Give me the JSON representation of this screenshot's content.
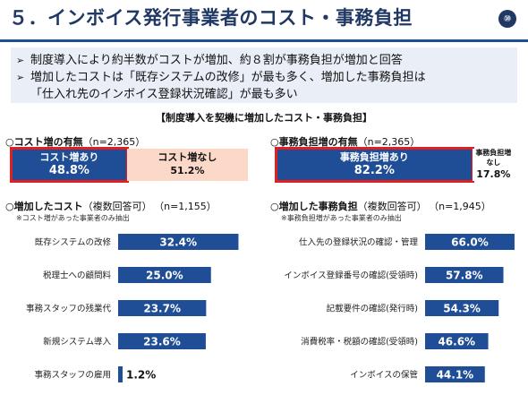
{
  "title": "５．インボイス発行事業者のコスト・事務負担",
  "page_number": "⑩",
  "summary": [
    "制度導入により約半数がコストが増加、約８割が事務負担が増加と回答",
    "増加したコストは「既存システムの改修」が最も多く、増加した事務負担は",
    "「仕入れ先のインボイス登録状況確認」が最も多い"
  ],
  "section_header": "【制度導入を契機に増加したコスト・事務負担】",
  "chart_data": [
    {
      "type": "bar",
      "stacked": true,
      "orientation": "horizontal",
      "title": "○コスト増の有無",
      "n_label": "（n=2,365）",
      "series": [
        {
          "name": "コスト増あり",
          "value": 48.8,
          "label": "48.8%",
          "color": "#1f4e96"
        },
        {
          "name": "コスト増なし",
          "value": 51.2,
          "label": "51.2%",
          "color": "#fbd8c8"
        }
      ],
      "xlim": [
        0,
        100
      ]
    },
    {
      "type": "bar",
      "stacked": true,
      "orientation": "horizontal",
      "title": "○事務負担増の有無",
      "n_label": "（n=2,365）",
      "series": [
        {
          "name": "事務負担増あり",
          "value": 82.2,
          "label": "82.2%",
          "color": "#1f4e96"
        },
        {
          "name": "事務負担増なし",
          "value": 17.8,
          "label": "17.8%",
          "color": "#fbd8c8"
        }
      ],
      "xlim": [
        0,
        100
      ]
    },
    {
      "type": "bar",
      "orientation": "horizontal",
      "title": "○増加したコスト",
      "title_note": "（複数回答可）",
      "n_label": "（n=1,155）",
      "note": "※コスト増があった事業者のみ抽出",
      "categories": [
        "既存システムの改修",
        "税理士への顧問料",
        "事務スタッフの残業代",
        "新規システム導入",
        "事務スタッフの雇用"
      ],
      "values": [
        32.4,
        25.0,
        23.7,
        23.6,
        1.2
      ],
      "value_labels": [
        "32.4%",
        "25.0%",
        "23.7%",
        "23.6%",
        "1.2%"
      ],
      "color": "#1f4e96",
      "xlim": [
        0,
        40
      ]
    },
    {
      "type": "bar",
      "orientation": "horizontal",
      "title": "○増加した事務負担",
      "title_note": "（複数回答可）",
      "n_label": "（n=1,945）",
      "note": "※事務負担増があった事業者のみ抽出",
      "categories": [
        "仕入先の登録状況の確認・管理",
        "インボイス登録番号の確認(受領時)",
        "記載要件の確認(発行時)",
        "消費税率・税額の確認(受領時)",
        "インボイスの保管"
      ],
      "values": [
        66.0,
        57.8,
        54.3,
        46.6,
        44.1
      ],
      "value_labels": [
        "66.0%",
        "57.8%",
        "54.3%",
        "46.6%",
        "44.1%"
      ],
      "color": "#1f4e96",
      "xlim": [
        0,
        70
      ]
    }
  ]
}
